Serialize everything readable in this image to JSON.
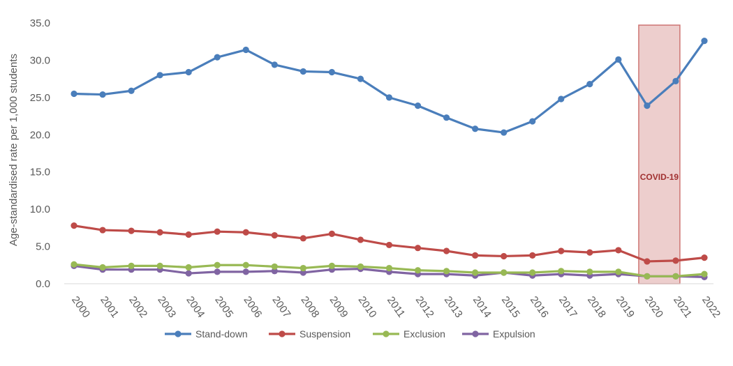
{
  "chart_data": {
    "type": "line",
    "title": "",
    "xlabel": "",
    "ylabel": "Age-standardised rate per 1,000 students",
    "ylim": [
      0,
      35
    ],
    "yticks": [
      "0.0",
      "5.0",
      "10.0",
      "15.0",
      "20.0",
      "25.0",
      "30.0",
      "35.0"
    ],
    "categories": [
      "2000",
      "2001",
      "2002",
      "2003",
      "2004",
      "2005",
      "2006",
      "2007",
      "2008",
      "2009",
      "2010",
      "2011",
      "2012",
      "2013",
      "2014",
      "2015",
      "2016",
      "2017",
      "2018",
      "2019",
      "2020",
      "2021",
      "2022"
    ],
    "series": [
      {
        "name": "Stand-down",
        "color": "#4a7ebb",
        "values": [
          25.5,
          25.4,
          25.9,
          28.0,
          28.4,
          30.4,
          31.4,
          29.4,
          28.5,
          28.4,
          27.5,
          25.0,
          23.9,
          22.3,
          20.8,
          20.3,
          21.8,
          24.8,
          26.8,
          30.1,
          23.9,
          27.2,
          32.6
        ]
      },
      {
        "name": "Suspension",
        "color": "#be4b48",
        "values": [
          7.8,
          7.2,
          7.1,
          6.9,
          6.6,
          7.0,
          6.9,
          6.5,
          6.1,
          6.7,
          5.9,
          5.2,
          4.8,
          4.4,
          3.8,
          3.7,
          3.8,
          4.4,
          4.2,
          4.5,
          3.0,
          3.1,
          3.5
        ]
      },
      {
        "name": "Exclusion",
        "color": "#98b954",
        "values": [
          2.6,
          2.2,
          2.4,
          2.4,
          2.2,
          2.5,
          2.5,
          2.3,
          2.1,
          2.4,
          2.3,
          2.1,
          1.8,
          1.7,
          1.5,
          1.5,
          1.5,
          1.7,
          1.6,
          1.6,
          1.0,
          1.0,
          1.3
        ]
      },
      {
        "name": "Expulsion",
        "color": "#8064a2",
        "values": [
          2.4,
          1.9,
          1.9,
          1.9,
          1.4,
          1.6,
          1.6,
          1.7,
          1.5,
          1.9,
          2.0,
          1.6,
          1.3,
          1.3,
          1.1,
          1.5,
          1.1,
          1.3,
          1.1,
          1.3,
          1.0,
          1.0,
          0.9
        ]
      }
    ],
    "annotation": {
      "label": "COVID-19",
      "span": [
        "2020",
        "2021"
      ],
      "color": "#c0504d"
    },
    "legend_position": "bottom"
  }
}
